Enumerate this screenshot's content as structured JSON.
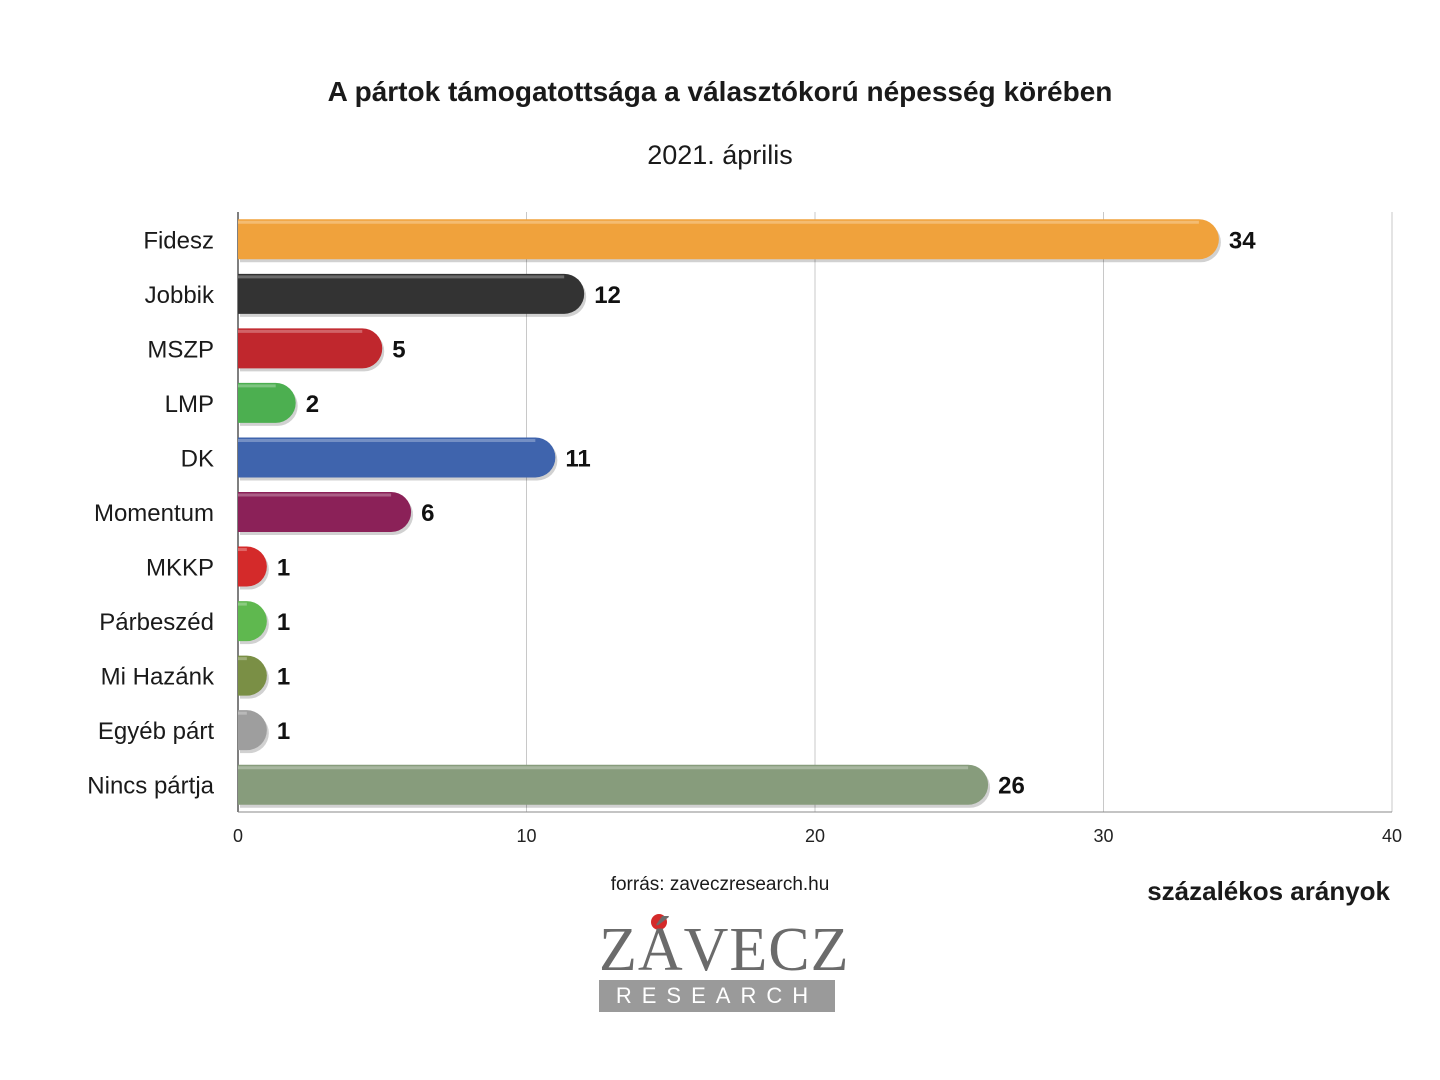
{
  "chart_data": {
    "type": "bar",
    "orientation": "horizontal",
    "title": "A pártok támogatottsága a választókorú népesség körében",
    "subtitle": "2021. április",
    "xlabel": "százalékos arányok",
    "ylabel": "",
    "xlim": [
      0,
      40
    ],
    "xticks": [
      0,
      10,
      20,
      30,
      40
    ],
    "grid": true,
    "categories": [
      "Fidesz",
      "Jobbik",
      "MSZP",
      "LMP",
      "DK",
      "Momentum",
      "MKKP",
      "Párbeszéd",
      "Mi Hazánk",
      "Egyéb párt",
      "Nincs pártja"
    ],
    "values": [
      34,
      12,
      5,
      2,
      11,
      6,
      1,
      1,
      1,
      1,
      26
    ],
    "colors": [
      "#f0a23c",
      "#333333",
      "#c0272d",
      "#4caf50",
      "#3f64ad",
      "#8b2158",
      "#d42a2a",
      "#5fb84f",
      "#7a8f45",
      "#9e9e9e",
      "#879c7c"
    ]
  },
  "source": "forrás: zaveczresearch.hu",
  "logo": {
    "word": "ZÁVECZ",
    "band": "RESEARCH",
    "dot_color": "#d42a2a"
  }
}
